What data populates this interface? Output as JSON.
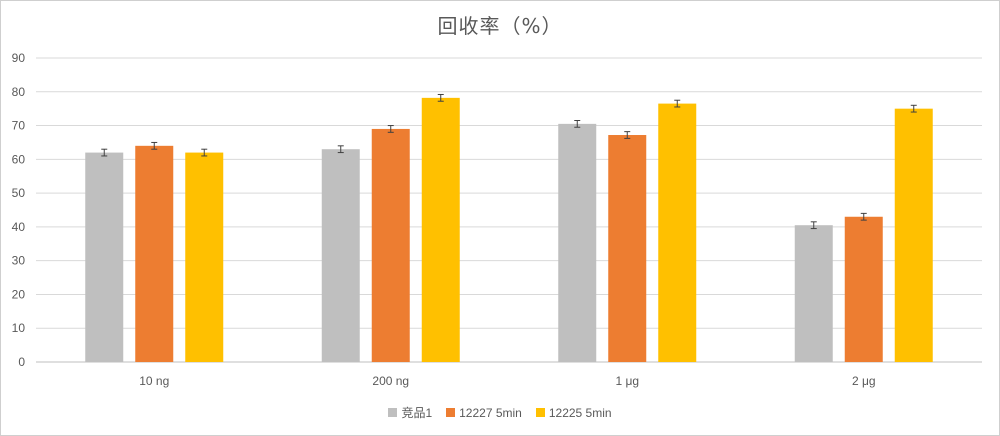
{
  "chart_data": {
    "type": "bar",
    "title": "回收率（%）",
    "categories": [
      "10 ng",
      "200 ng",
      "1 μg",
      "2 μg"
    ],
    "series": [
      {
        "name": "竞品1",
        "color": "#bfbfbf",
        "values": [
          62,
          63,
          70.5,
          40.5
        ],
        "errors": [
          1.0,
          1.0,
          1.0,
          1.0
        ]
      },
      {
        "name": "12227 5min",
        "color": "#ed7d31",
        "values": [
          64,
          69,
          67.2,
          43
        ],
        "errors": [
          1.0,
          1.0,
          1.0,
          1.0
        ]
      },
      {
        "name": "12225 5min",
        "color": "#ffc000",
        "values": [
          62,
          78.2,
          76.5,
          75
        ],
        "errors": [
          1.0,
          1.0,
          1.0,
          1.0
        ]
      }
    ],
    "ylim": [
      0,
      90
    ],
    "yticks": [
      0,
      10,
      20,
      30,
      40,
      50,
      60,
      70,
      80,
      90
    ],
    "grid": true,
    "legend_position": "bottom"
  }
}
